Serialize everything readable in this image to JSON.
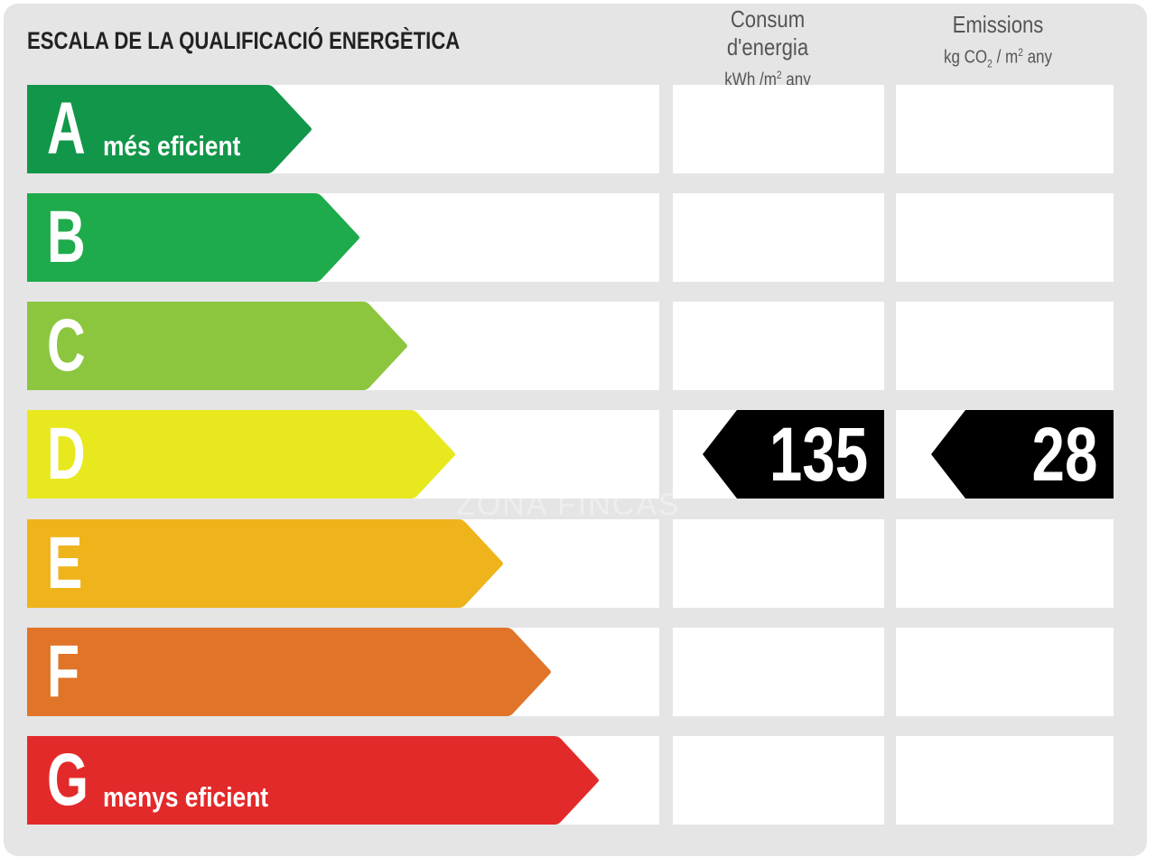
{
  "title": "ESCALA DE LA QUALIFICACIÓ ENERGÈTICA",
  "columns": {
    "consumption": {
      "heading": "Consum d'energia",
      "unit_pre": "kWh /m",
      "unit_sup": "2",
      "unit_post": " any"
    },
    "emissions": {
      "heading": "Emissions",
      "unit_pre": "kg CO",
      "unit_sub": "2",
      "unit_mid": " / m",
      "unit_sup": "2",
      "unit_post": " any"
    }
  },
  "classes": [
    {
      "letter": "A",
      "label": "més eficient",
      "color": "#12964a"
    },
    {
      "letter": "B",
      "label": "",
      "color": "#1eab4b"
    },
    {
      "letter": "C",
      "label": "",
      "color": "#8cc63f"
    },
    {
      "letter": "D",
      "label": "",
      "color": "#e8e81f"
    },
    {
      "letter": "E",
      "label": "",
      "color": "#efb31b"
    },
    {
      "letter": "F",
      "label": "",
      "color": "#e07428"
    },
    {
      "letter": "G",
      "label": "menys eficient",
      "color": "#e32a2a"
    }
  ],
  "rating": {
    "class": "D",
    "consumption_value": "135",
    "emissions_value": "28",
    "marker_color": "#000000"
  },
  "watermark": "ZONA FINCAS"
}
